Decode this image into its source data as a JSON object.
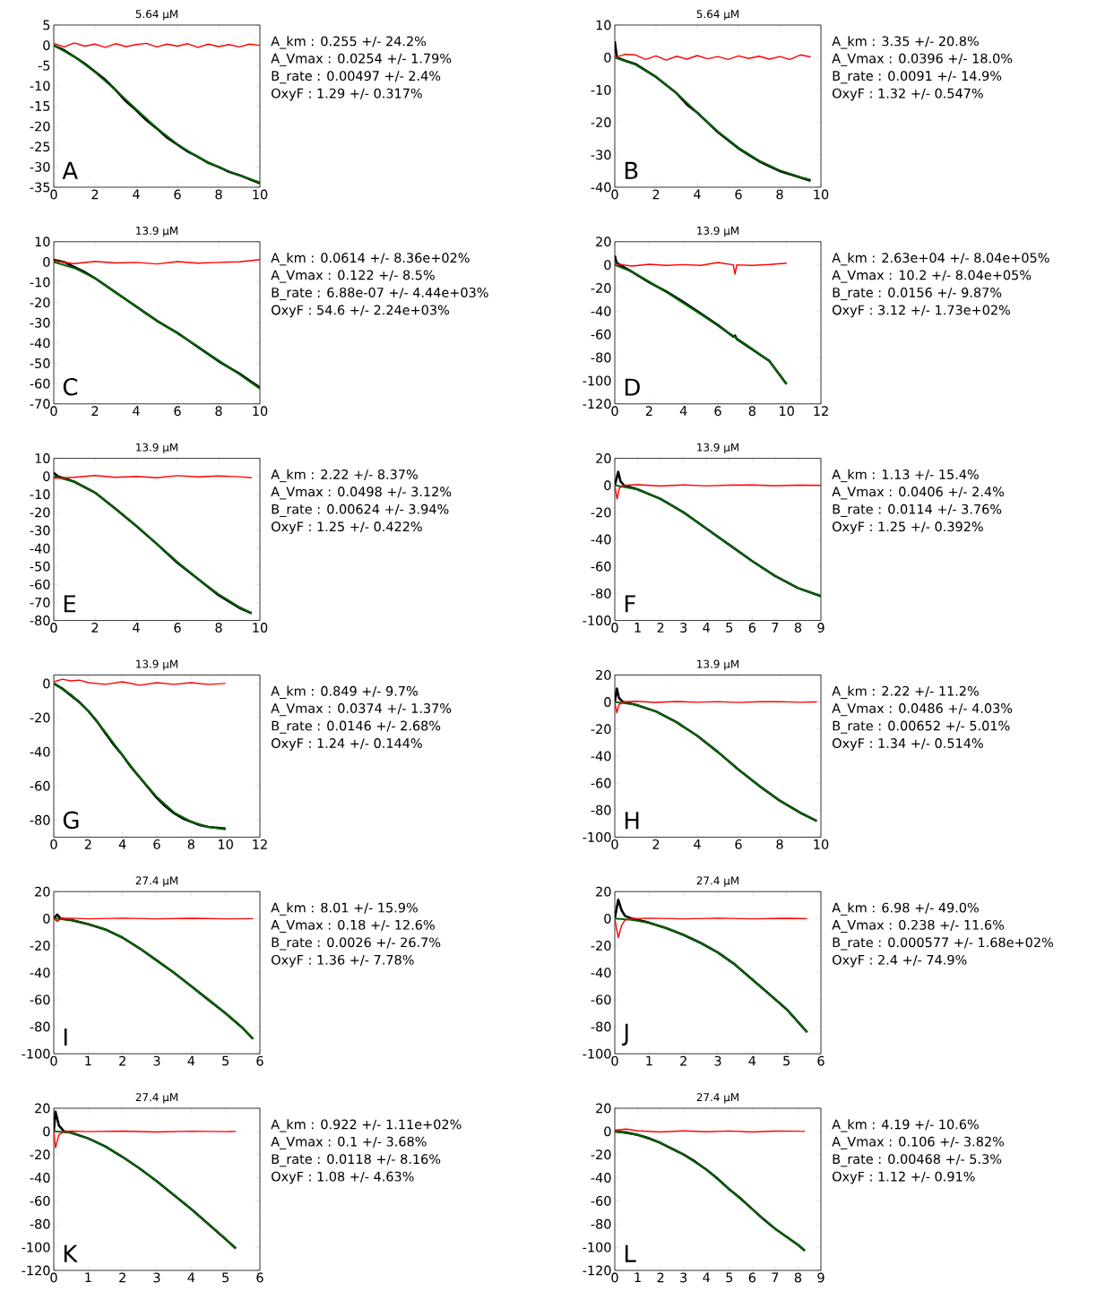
{
  "chart_data": [
    {
      "type": "line",
      "title": "5.64 µM",
      "xlim": [
        0,
        10
      ],
      "ylim": [
        -35,
        5
      ],
      "xticks": [
        0,
        2,
        4,
        6,
        8,
        10
      ],
      "yticks": [
        -35,
        -30,
        -25,
        -20,
        -15,
        -10,
        -5,
        0,
        5
      ],
      "annotations": [
        "A",
        "A_km : 0.255 +/- 24.2%",
        "A_Vmax : 0.0254 +/- 1.79%",
        "B_rate : 0.00497 +/- 2.4%",
        "OxyF : 1.29 +/- 0.317%"
      ],
      "series": [
        {
          "color": "#000000",
          "x": [
            0,
            0.5,
            1,
            1.5,
            2,
            2.5,
            3,
            3.5,
            4,
            4.5,
            5,
            5.5,
            6,
            6.5,
            7,
            7.5,
            8,
            8.5,
            9,
            9.5,
            10
          ],
          "values": [
            0,
            -1.2,
            -2.8,
            -4.5,
            -6.5,
            -8.5,
            -11,
            -13.8,
            -16,
            -18.5,
            -20.5,
            -22.8,
            -24.5,
            -26.2,
            -27.5,
            -29,
            -30,
            -31.2,
            -32,
            -33,
            -34
          ]
        },
        {
          "color": "#006400",
          "x": [
            0,
            1,
            2,
            3,
            4,
            5,
            6,
            7,
            8,
            9,
            10
          ],
          "values": [
            0,
            -2.8,
            -6.6,
            -11,
            -15.8,
            -20.4,
            -24.4,
            -27.6,
            -30.1,
            -32.1,
            -33.8
          ]
        },
        {
          "color": "#ff0000",
          "x": [
            0,
            0.5,
            1,
            1.5,
            2,
            2.5,
            3,
            3.5,
            4,
            4.5,
            5,
            5.5,
            6,
            6.5,
            7,
            7.5,
            8,
            8.5,
            9,
            9.5,
            10
          ],
          "values": [
            0.5,
            -0.4,
            0.6,
            -0.2,
            0.3,
            -0.5,
            0.4,
            -0.3,
            0.2,
            0.5,
            -0.4,
            0.3,
            -0.2,
            0.4,
            -0.5,
            0.3,
            -0.3,
            0.2,
            -0.4,
            0.3,
            0
          ]
        }
      ]
    },
    {
      "type": "line",
      "title": "5.64 µM",
      "xlim": [
        0,
        10
      ],
      "ylim": [
        -40,
        10
      ],
      "xticks": [
        0,
        2,
        4,
        6,
        8,
        10
      ],
      "yticks": [
        -40,
        -30,
        -20,
        -10,
        0,
        10
      ],
      "annotations": [
        "B",
        "A_km : 3.35 +/- 20.8%",
        "A_Vmax : 0.0396 +/- 18.0%",
        "B_rate : 0.0091 +/- 14.9%",
        "OxyF : 1.32 +/- 0.547%"
      ],
      "series": [
        {
          "color": "#000000",
          "x": [
            0,
            0.1,
            0.5,
            1,
            1.5,
            2,
            2.5,
            3,
            3.5,
            4,
            4.5,
            5,
            5.5,
            6,
            6.5,
            7,
            7.5,
            8,
            8.5,
            9,
            9.5
          ],
          "values": [
            5,
            0,
            -1,
            -2,
            -4,
            -6,
            -8.5,
            -11,
            -14.5,
            -17,
            -20,
            -23,
            -25.5,
            -28,
            -30,
            -32,
            -33.5,
            -35,
            -36,
            -37,
            -38
          ]
        },
        {
          "color": "#006400",
          "x": [
            0,
            1,
            2,
            3,
            4,
            5,
            6,
            7,
            8,
            9,
            9.5
          ],
          "values": [
            0,
            -2.2,
            -6,
            -11,
            -17,
            -22.8,
            -27.8,
            -31.8,
            -34.8,
            -36.9,
            -37.7
          ]
        },
        {
          "color": "#ff0000",
          "x": [
            0,
            0.5,
            1,
            1.5,
            2,
            2.5,
            3,
            3.5,
            4,
            4.5,
            5,
            5.5,
            6,
            6.5,
            7,
            7.5,
            8,
            8.5,
            9,
            9.5
          ],
          "values": [
            0,
            1,
            0.8,
            -0.6,
            0.5,
            -0.8,
            0.4,
            -0.5,
            0.6,
            -0.4,
            0.3,
            -0.6,
            0.5,
            -0.3,
            0.4,
            -0.5,
            0.3,
            -0.6,
            0.8,
            0.2
          ]
        }
      ]
    },
    {
      "type": "line",
      "title": "13.9 µM",
      "xlim": [
        0,
        10
      ],
      "ylim": [
        -70,
        10
      ],
      "xticks": [
        0,
        2,
        4,
        6,
        8,
        10
      ],
      "yticks": [
        -70,
        -60,
        -50,
        -40,
        -30,
        -20,
        -10,
        0,
        10
      ],
      "annotations": [
        "C",
        "A_km : 0.0614 +/- 8.36e+02%",
        "A_Vmax : 0.122 +/- 8.5%",
        "B_rate : 6.88e-07 +/- 4.44e+03%",
        "OxyF : 54.6 +/- 2.24e+03%"
      ],
      "series": [
        {
          "color": "#000000",
          "x": [
            0,
            0.5,
            1,
            1.5,
            2,
            2.5,
            3,
            3.5,
            4,
            4.5,
            5,
            5.5,
            6,
            6.5,
            7,
            7.5,
            8,
            8.5,
            9,
            9.5,
            10
          ],
          "values": [
            1,
            0,
            -2.5,
            -5,
            -8,
            -11.5,
            -15,
            -18.5,
            -22,
            -25.5,
            -29,
            -32,
            -35,
            -38.5,
            -42,
            -45.5,
            -49,
            -52,
            -55,
            -58.5,
            -62
          ]
        },
        {
          "color": "#006400",
          "x": [
            0,
            1,
            2,
            3,
            4,
            5,
            6,
            7,
            8,
            9,
            10
          ],
          "values": [
            0,
            -3,
            -8,
            -15,
            -22,
            -28.8,
            -35.2,
            -41.8,
            -48.6,
            -55.4,
            -62.5
          ]
        },
        {
          "color": "#ff0000",
          "x": [
            0,
            1,
            2,
            3,
            4,
            5,
            6,
            7,
            8,
            9,
            10
          ],
          "values": [
            0.5,
            -0.8,
            0.3,
            -0.5,
            -0.2,
            -1,
            0.2,
            -0.6,
            -0.2,
            0.1,
            1.2
          ]
        }
      ]
    },
    {
      "type": "line",
      "title": "13.9 µM",
      "xlim": [
        0,
        12
      ],
      "ylim": [
        -120,
        20
      ],
      "xticks": [
        0,
        2,
        4,
        6,
        8,
        10,
        12
      ],
      "yticks": [
        -120,
        -100,
        -80,
        -60,
        -40,
        -20,
        0,
        20
      ],
      "annotations": [
        "D",
        "A_km : 2.63e+04 +/- 8.04e+05%",
        "A_Vmax : 10.2 +/- 8.04e+05%",
        "B_rate : 0.0156 +/- 9.87%",
        "OxyF : 3.12 +/- 1.73e+02%"
      ],
      "series": [
        {
          "color": "#000000",
          "x": [
            0,
            0.1,
            0.3,
            1,
            2,
            3,
            4,
            5,
            6,
            6.9,
            7,
            7.1,
            8,
            9,
            10
          ],
          "values": [
            8,
            2,
            0,
            -6,
            -15,
            -23,
            -32,
            -42,
            -52,
            -62,
            -61,
            -64,
            -73,
            -83,
            -103
          ]
        },
        {
          "color": "#006400",
          "x": [
            0,
            1,
            2,
            3,
            4,
            5,
            6,
            7,
            8,
            9,
            10
          ],
          "values": [
            0,
            -6,
            -14.5,
            -23.5,
            -33,
            -42.5,
            -52.5,
            -62.5,
            -72.5,
            -83,
            -103
          ]
        },
        {
          "color": "#ff0000",
          "x": [
            0,
            1,
            2,
            3,
            4,
            5,
            6,
            6.9,
            7,
            7.1,
            8,
            9,
            10
          ],
          "values": [
            1,
            -1,
            0.5,
            -0.5,
            0.2,
            -0.5,
            2,
            0,
            -8,
            0,
            -0.5,
            0.3,
            1.5
          ]
        }
      ]
    },
    {
      "type": "line",
      "title": "13.9 µM",
      "xlim": [
        0,
        10
      ],
      "ylim": [
        -80,
        10
      ],
      "xticks": [
        0,
        2,
        4,
        6,
        8,
        10
      ],
      "yticks": [
        -80,
        -70,
        -60,
        -50,
        -40,
        -30,
        -20,
        -10,
        0,
        10
      ],
      "annotations": [
        "E",
        "A_km : 2.22 +/- 8.37%",
        "A_Vmax : 0.0498 +/- 3.12%",
        "B_rate : 0.00624 +/- 3.94%",
        "OxyF : 1.25 +/- 0.422%"
      ],
      "series": [
        {
          "color": "#000000",
          "x": [
            0,
            0.2,
            0.5,
            1,
            2,
            3,
            4,
            5,
            6,
            7,
            8,
            9,
            9.6
          ],
          "values": [
            2,
            0,
            -1,
            -3,
            -9,
            -18,
            -27.5,
            -37.5,
            -48,
            -57,
            -66,
            -73,
            -76
          ]
        },
        {
          "color": "#006400",
          "x": [
            0,
            1,
            2,
            3,
            4,
            5,
            6,
            7,
            8,
            9,
            9.6
          ],
          "values": [
            0,
            -3,
            -9,
            -18,
            -27.5,
            -37.5,
            -47.5,
            -57,
            -65.5,
            -72.5,
            -76
          ]
        },
        {
          "color": "#ff0000",
          "x": [
            0,
            1,
            2,
            3,
            4,
            5,
            6,
            7,
            8,
            9,
            9.6
          ],
          "values": [
            -1,
            -0.5,
            0.5,
            -0.5,
            0,
            -0.8,
            0.4,
            -0.3,
            0.2,
            -0.2,
            -0.8
          ]
        }
      ]
    },
    {
      "type": "line",
      "title": "13.9 µM",
      "xlim": [
        0,
        9
      ],
      "ylim": [
        -100,
        20
      ],
      "xticks": [
        0,
        1,
        2,
        3,
        4,
        5,
        6,
        7,
        8,
        9
      ],
      "yticks": [
        -100,
        -80,
        -60,
        -40,
        -20,
        0,
        20
      ],
      "annotations": [
        "F",
        "A_km : 1.13 +/- 15.4%",
        "A_Vmax : 0.0406 +/- 2.4%",
        "B_rate : 0.0114 +/- 3.76%",
        "OxyF : 1.25 +/- 0.392%"
      ],
      "series": [
        {
          "color": "#000000",
          "x": [
            0,
            0.15,
            0.25,
            0.4,
            1,
            2,
            3,
            4,
            5,
            6,
            7,
            8,
            9
          ],
          "values": [
            0,
            10,
            3,
            0,
            -3,
            -10,
            -20,
            -32,
            -44,
            -56,
            -67,
            -76,
            -82
          ]
        },
        {
          "color": "#006400",
          "x": [
            0,
            1,
            2,
            3,
            4,
            5,
            6,
            7,
            8,
            9
          ],
          "values": [
            0,
            -3,
            -10,
            -20,
            -32,
            -44,
            -56,
            -67,
            -76,
            -82
          ]
        },
        {
          "color": "#ff0000",
          "x": [
            0,
            0.1,
            0.2,
            0.4,
            1,
            2,
            3,
            4,
            5,
            6,
            7,
            8,
            9
          ],
          "values": [
            0,
            -10,
            -2,
            0,
            0.5,
            -0.5,
            0.3,
            -0.4,
            0.2,
            0.3,
            -0.3,
            0.2,
            0
          ]
        }
      ]
    },
    {
      "type": "line",
      "title": "13.9 µM",
      "xlim": [
        0,
        12
      ],
      "ylim": [
        -90,
        5
      ],
      "xticks": [
        0,
        2,
        4,
        6,
        8,
        10,
        12
      ],
      "yticks": [
        -80,
        -60,
        -40,
        -20,
        0
      ],
      "annotations": [
        "G",
        "A_km : 0.849 +/- 9.7%",
        "A_Vmax : 0.0374 +/- 1.37%",
        "B_rate : 0.0146 +/- 2.68%",
        "OxyF : 1.24 +/- 0.144%"
      ],
      "series": [
        {
          "color": "#000000",
          "x": [
            0,
            0.5,
            1,
            1.5,
            2,
            2.5,
            3,
            3.5,
            4,
            4.5,
            5,
            5.5,
            6,
            6.5,
            7,
            7.5,
            8,
            8.5,
            9,
            9.5,
            10
          ],
          "values": [
            0,
            -3,
            -7,
            -11,
            -16,
            -22,
            -29,
            -36,
            -42,
            -49,
            -55,
            -61,
            -67,
            -72,
            -76,
            -79,
            -81,
            -83,
            -84,
            -84.5,
            -85
          ]
        },
        {
          "color": "#006400",
          "x": [
            0,
            1,
            2,
            3,
            4,
            5,
            6,
            7,
            8,
            9,
            10
          ],
          "values": [
            0,
            -6.5,
            -16,
            -28.5,
            -42,
            -55,
            -66.5,
            -75.5,
            -81,
            -84,
            -85.5
          ]
        },
        {
          "color": "#ff0000",
          "x": [
            0,
            0.5,
            1,
            1.5,
            2,
            3,
            4,
            5,
            6,
            7,
            8,
            9,
            10
          ],
          "values": [
            1,
            2.5,
            1.5,
            2,
            0.5,
            -0.5,
            1,
            -1,
            0.5,
            -0.5,
            0.5,
            -0.5,
            0
          ]
        }
      ]
    },
    {
      "type": "line",
      "title": "13.9 µM",
      "xlim": [
        0,
        10
      ],
      "ylim": [
        -100,
        20
      ],
      "xticks": [
        0,
        2,
        4,
        6,
        8,
        10
      ],
      "yticks": [
        -100,
        -80,
        -60,
        -40,
        -20,
        0,
        20
      ],
      "annotations": [
        "H",
        "A_km : 2.22 +/- 11.2%",
        "A_Vmax : 0.0486 +/- 4.03%",
        "B_rate : 0.00652 +/- 5.01%",
        "OxyF : 1.34 +/- 0.514%"
      ],
      "series": [
        {
          "color": "#000000",
          "x": [
            0,
            0.1,
            0.2,
            0.4,
            1,
            2,
            3,
            4,
            5,
            6,
            7,
            8,
            9,
            9.8
          ],
          "values": [
            0,
            10,
            3,
            0,
            -2,
            -7,
            -15,
            -25,
            -37,
            -50,
            -62,
            -73,
            -82,
            -88
          ]
        },
        {
          "color": "#006400",
          "x": [
            0,
            1,
            2,
            3,
            4,
            5,
            6,
            7,
            8,
            9,
            9.8
          ],
          "values": [
            0,
            -2,
            -7,
            -15,
            -25,
            -37,
            -50,
            -62,
            -73,
            -82,
            -88
          ]
        },
        {
          "color": "#ff0000",
          "x": [
            0,
            0.1,
            0.2,
            0.4,
            1,
            2,
            3,
            4,
            5,
            6,
            7,
            8,
            9,
            9.8
          ],
          "values": [
            0,
            -8,
            -2,
            0,
            0.5,
            -0.3,
            0.4,
            -0.2,
            0.3,
            -0.4,
            0.2,
            0.3,
            -0.2,
            0
          ]
        }
      ]
    },
    {
      "type": "line",
      "title": "27.4 µM",
      "xlim": [
        0,
        6
      ],
      "ylim": [
        -100,
        20
      ],
      "xticks": [
        0,
        1,
        2,
        3,
        4,
        5,
        6
      ],
      "yticks": [
        -100,
        -80,
        -60,
        -40,
        -20,
        0,
        20
      ],
      "annotations": [
        "I",
        "A_km : 8.01 +/- 15.9%",
        "A_Vmax : 0.18 +/- 12.6%",
        "B_rate : 0.0026 +/- 26.7%",
        "OxyF : 1.36 +/- 7.78%"
      ],
      "series": [
        {
          "color": "#000000",
          "x": [
            0,
            0.1,
            0.2,
            0.5,
            1,
            1.5,
            2,
            2.5,
            3,
            3.5,
            4,
            4.5,
            5,
            5.5,
            5.8
          ],
          "values": [
            0,
            3,
            0,
            -1,
            -4,
            -8,
            -14,
            -22,
            -31,
            -40,
            -50,
            -60,
            -70,
            -81,
            -89
          ]
        },
        {
          "color": "#006400",
          "x": [
            0,
            0.5,
            1,
            1.5,
            2,
            2.5,
            3,
            3.5,
            4,
            4.5,
            5,
            5.5,
            5.8
          ],
          "values": [
            0,
            -1,
            -4,
            -8,
            -14,
            -22,
            -31,
            -40,
            -50,
            -60,
            -70,
            -81,
            -89
          ]
        },
        {
          "color": "#ff0000",
          "x": [
            0,
            0.1,
            0.2,
            0.5,
            1,
            2,
            3,
            4,
            5,
            5.8
          ],
          "values": [
            0,
            -2,
            0,
            0.3,
            -0.2,
            0.3,
            -0.2,
            0.2,
            -0.2,
            0
          ]
        }
      ]
    },
    {
      "type": "line",
      "title": "27.4 µM",
      "xlim": [
        0,
        6
      ],
      "ylim": [
        -100,
        20
      ],
      "xticks": [
        0,
        1,
        2,
        3,
        4,
        5,
        6
      ],
      "yticks": [
        -100,
        -80,
        -60,
        -40,
        -20,
        0,
        20
      ],
      "annotations": [
        "J",
        "A_km : 6.98 +/- 49.0%",
        "A_Vmax : 0.238 +/- 11.6%",
        "B_rate : 0.000577 +/- 1.68e+02%",
        "OxyF : 2.4 +/- 74.9%"
      ],
      "series": [
        {
          "color": "#000000",
          "x": [
            0,
            0.1,
            0.2,
            0.3,
            0.5,
            1,
            1.5,
            2,
            2.5,
            3,
            3.5,
            4,
            4.5,
            5,
            5.6
          ],
          "values": [
            0,
            14,
            6,
            2,
            0,
            -3,
            -7,
            -12,
            -18,
            -25,
            -34,
            -45,
            -56,
            -67,
            -84
          ]
        },
        {
          "color": "#006400",
          "x": [
            0,
            0.5,
            1,
            1.5,
            2,
            2.5,
            3,
            3.5,
            4,
            4.5,
            5,
            5.6
          ],
          "values": [
            0,
            -1,
            -3,
            -7,
            -12,
            -18,
            -25,
            -34,
            -45,
            -56,
            -67,
            -84
          ]
        },
        {
          "color": "#ff0000",
          "x": [
            0,
            0.1,
            0.2,
            0.3,
            0.5,
            1,
            2,
            3,
            4,
            5,
            5.6
          ],
          "values": [
            0,
            -14,
            -5,
            -1,
            0,
            0.3,
            -0.2,
            0.3,
            -0.2,
            0.2,
            0
          ]
        }
      ]
    },
    {
      "type": "line",
      "title": "27.4 µM",
      "xlim": [
        0,
        6
      ],
      "ylim": [
        -120,
        20
      ],
      "xticks": [
        0,
        1,
        2,
        3,
        4,
        5,
        6
      ],
      "yticks": [
        -120,
        -100,
        -80,
        -60,
        -40,
        -20,
        0,
        20
      ],
      "annotations": [
        "K",
        "A_km : 0.922 +/- 1.11e+02%",
        "A_Vmax : 0.1 +/- 3.68%",
        "B_rate : 0.0118 +/- 8.16%",
        "OxyF : 1.08 +/- 4.63%"
      ],
      "series": [
        {
          "color": "#000000",
          "x": [
            0,
            0.05,
            0.15,
            0.3,
            0.5,
            1,
            1.5,
            2,
            2.5,
            3,
            3.5,
            4,
            4.5,
            5,
            5.3
          ],
          "values": [
            0,
            17,
            5,
            0,
            -1,
            -6,
            -13,
            -22,
            -32,
            -43,
            -55,
            -67,
            -80,
            -93,
            -101
          ]
        },
        {
          "color": "#006400",
          "x": [
            0,
            0.5,
            1,
            1.5,
            2,
            2.5,
            3,
            3.5,
            4,
            4.5,
            5,
            5.3
          ],
          "values": [
            0,
            -1,
            -6,
            -13,
            -22,
            -32,
            -43,
            -55,
            -67,
            -80,
            -93,
            -101
          ]
        },
        {
          "color": "#ff0000",
          "x": [
            0,
            0.05,
            0.15,
            0.3,
            0.5,
            1,
            2,
            3,
            4,
            5,
            5.3
          ],
          "values": [
            0,
            -14,
            -3,
            0,
            0.3,
            -0.2,
            0.3,
            -0.5,
            0.2,
            -0.2,
            0
          ]
        }
      ]
    },
    {
      "type": "line",
      "title": "27.4 µM",
      "xlim": [
        0,
        9
      ],
      "ylim": [
        -120,
        20
      ],
      "xticks": [
        0,
        1,
        2,
        3,
        4,
        5,
        6,
        7,
        8,
        9
      ],
      "yticks": [
        -120,
        -100,
        -80,
        -60,
        -40,
        -20,
        0,
        20
      ],
      "annotations": [
        "L",
        "A_km : 4.19 +/- 10.6%",
        "A_Vmax : 0.106 +/- 3.82%",
        "B_rate : 0.00468 +/- 5.3%",
        "OxyF : 1.12 +/- 0.91%"
      ],
      "series": [
        {
          "color": "#000000",
          "x": [
            0,
            0.5,
            1,
            1.5,
            2,
            2.5,
            3,
            3.5,
            4,
            4.5,
            5,
            5.5,
            6,
            6.5,
            7,
            7.5,
            8,
            8.3
          ],
          "values": [
            0,
            -1,
            -3,
            -6,
            -10,
            -15,
            -20,
            -26,
            -33,
            -41,
            -50,
            -58,
            -67,
            -76,
            -84,
            -91,
            -98,
            -103
          ]
        },
        {
          "color": "#006400",
          "x": [
            0,
            1,
            2,
            3,
            4,
            5,
            6,
            7,
            8,
            8.3
          ],
          "values": [
            0,
            -3,
            -10,
            -20,
            -33,
            -50,
            -67,
            -84,
            -98,
            -103
          ]
        },
        {
          "color": "#ff0000",
          "x": [
            0,
            0.5,
            1,
            2,
            3,
            4,
            5,
            6,
            7,
            8,
            8.3
          ],
          "values": [
            1,
            2,
            0.5,
            -0.5,
            0.5,
            -0.3,
            0.4,
            -0.5,
            0.3,
            0.2,
            0
          ]
        }
      ]
    }
  ]
}
